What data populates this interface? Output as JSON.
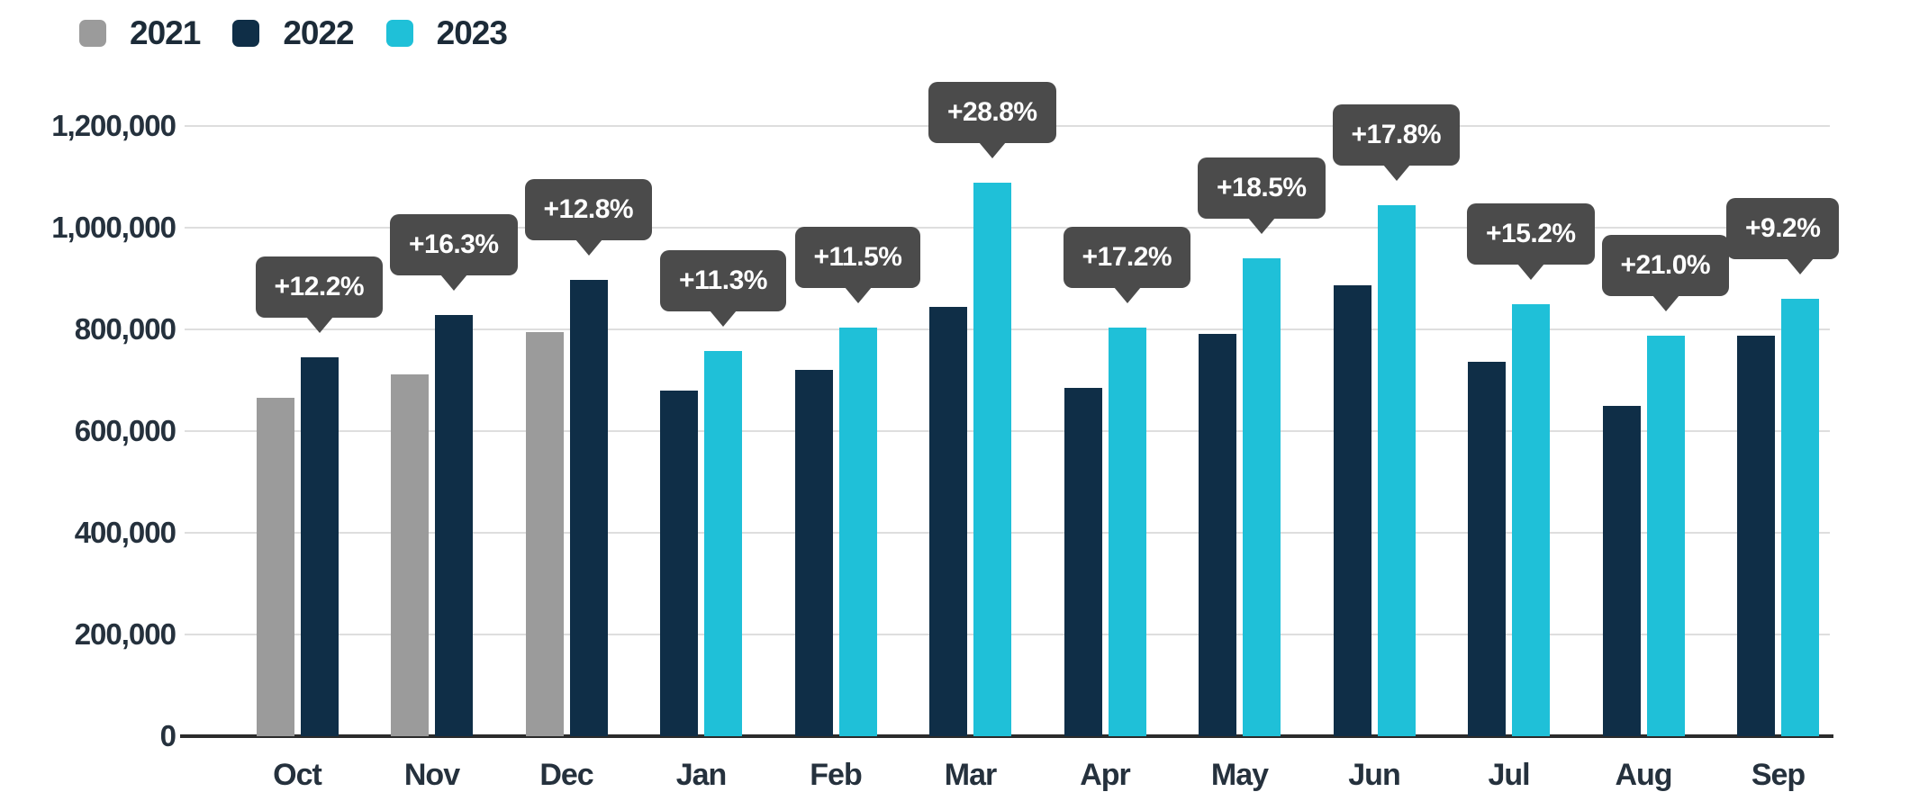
{
  "legend": {
    "items": [
      {
        "label": "2021",
        "color": "#9b9b9b"
      },
      {
        "label": "2022",
        "color": "#0f2e47"
      },
      {
        "label": "2023",
        "color": "#1fc0d8"
      }
    ]
  },
  "colors": {
    "background": "#ffffff",
    "gridline": "#dedede",
    "axis_line": "#2b2b2b",
    "tick_text": "#25313d",
    "tooltip_bg": "#4b4b4b",
    "tooltip_text": "#ffffff"
  },
  "chart_data": {
    "type": "bar",
    "title": "",
    "xlabel": "",
    "ylabel": "",
    "ylim": [
      0,
      1200000
    ],
    "grid": true,
    "legend_position": "top-left",
    "y_tick_labels": [
      "1,200,000",
      "1,000,000",
      "800,000",
      "600,000",
      "400,000",
      "200,000",
      "0"
    ],
    "categories": [
      "Oct",
      "Nov",
      "Dec",
      "Jan",
      "Feb",
      "Mar",
      "Apr",
      "May",
      "Jun",
      "Jul",
      "Aug",
      "Sep"
    ],
    "series": [
      {
        "name": "2021",
        "color": "#9b9b9b",
        "values": [
          665000,
          712000,
          795000,
          null,
          null,
          null,
          null,
          null,
          null,
          null,
          null,
          null
        ]
      },
      {
        "name": "2022",
        "color": "#0f2e47",
        "values": [
          746000,
          828000,
          897000,
          680000,
          720000,
          845000,
          685000,
          792000,
          887000,
          737000,
          650000,
          788000
        ]
      },
      {
        "name": "2023",
        "color": "#1fc0d8",
        "values": [
          null,
          null,
          null,
          757000,
          803000,
          1088000,
          803000,
          939000,
          1045000,
          849000,
          787000,
          860000
        ]
      }
    ],
    "annotations": [
      {
        "category": "Oct",
        "label": "+12.2%"
      },
      {
        "category": "Nov",
        "label": "+16.3%"
      },
      {
        "category": "Dec",
        "label": "+12.8%"
      },
      {
        "category": "Jan",
        "label": "+11.3%"
      },
      {
        "category": "Feb",
        "label": "+11.5%"
      },
      {
        "category": "Mar",
        "label": "+28.8%"
      },
      {
        "category": "Apr",
        "label": "+17.2%"
      },
      {
        "category": "May",
        "label": "+18.5%"
      },
      {
        "category": "Jun",
        "label": "+17.8%"
      },
      {
        "category": "Jul",
        "label": "+15.2%"
      },
      {
        "category": "Aug",
        "label": "+21.0%"
      },
      {
        "category": "Sep",
        "label": "+9.2%"
      }
    ]
  }
}
